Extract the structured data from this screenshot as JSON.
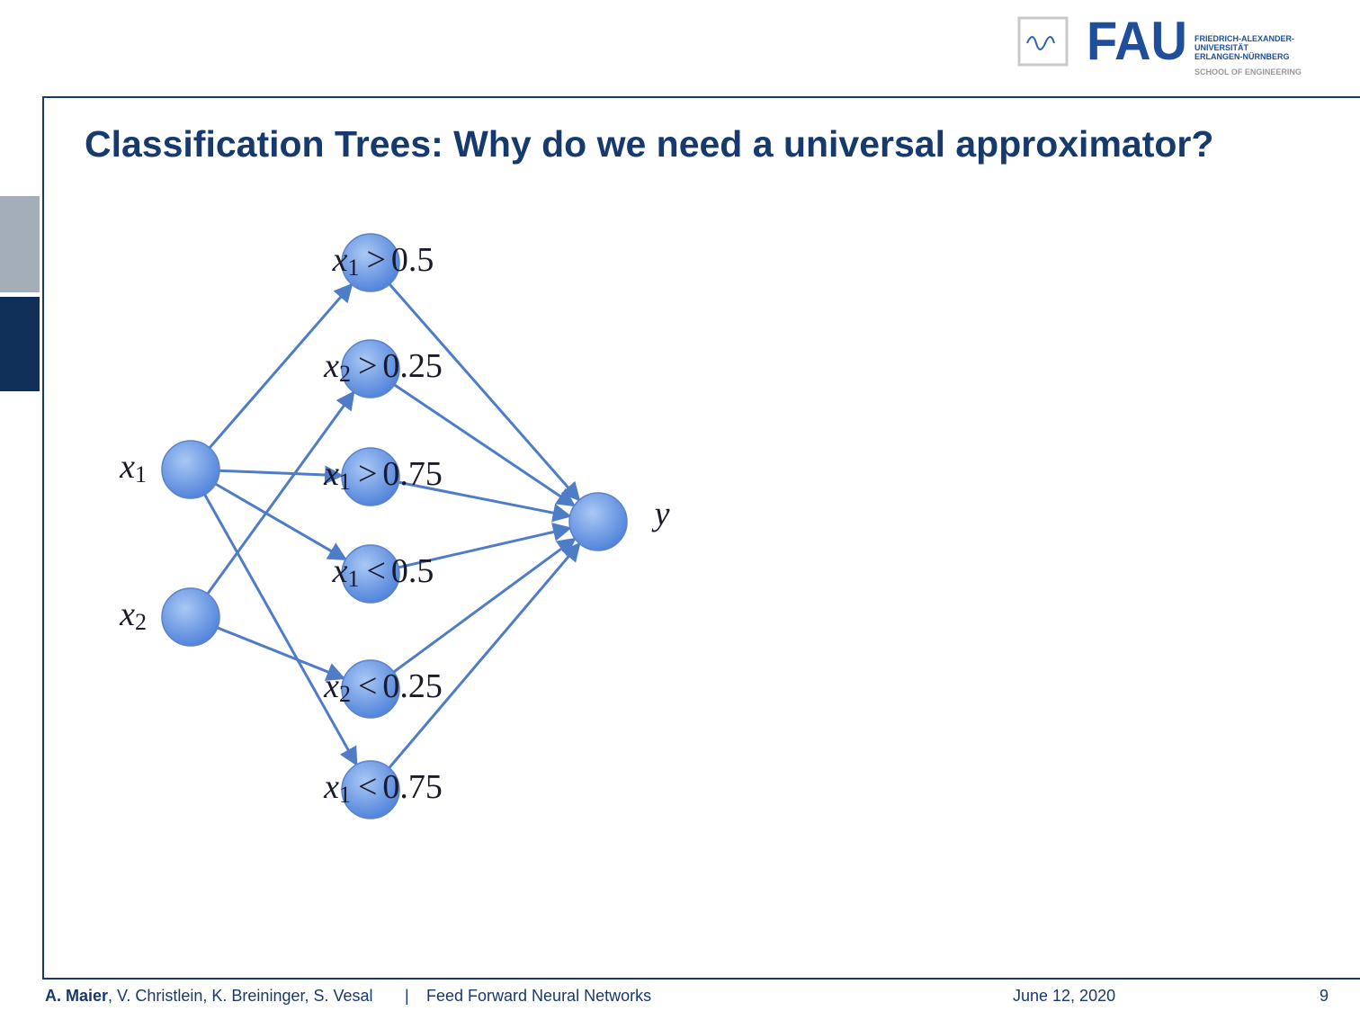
{
  "header": {
    "logo_lines": [
      "FRIEDRICH-ALEXANDER-",
      "UNIVERSITÄT",
      "ERLANGEN-NÜRNBERG"
    ],
    "logo_word": "FAU",
    "school": "SCHOOL OF ENGINEERING"
  },
  "title": "Classification Trees: Why do we need a universal approximator?",
  "diagram": {
    "inputs": [
      {
        "var": "x",
        "sub": "1"
      },
      {
        "var": "x",
        "sub": "2"
      }
    ],
    "hidden": [
      {
        "var": "x",
        "sub": "1",
        "op": ">",
        "value": "0.5"
      },
      {
        "var": "x",
        "sub": "2",
        "op": ">",
        "value": "0.25"
      },
      {
        "var": "x",
        "sub": "1",
        "op": ">",
        "value": "0.75"
      },
      {
        "var": "x",
        "sub": "1",
        "op": "<",
        "value": "0.5"
      },
      {
        "var": "x",
        "sub": "2",
        "op": "<",
        "value": "0.25"
      },
      {
        "var": "x",
        "sub": "1",
        "op": "<",
        "value": "0.75"
      }
    ],
    "output": "y"
  },
  "footer": {
    "author_bold": "A. Maier",
    "authors_rest": ", V. Christlein, K. Breininger, S. Vesal",
    "separator": "|",
    "course": "Feed Forward Neural Networks",
    "date": "June 12, 2020",
    "page": "9"
  }
}
